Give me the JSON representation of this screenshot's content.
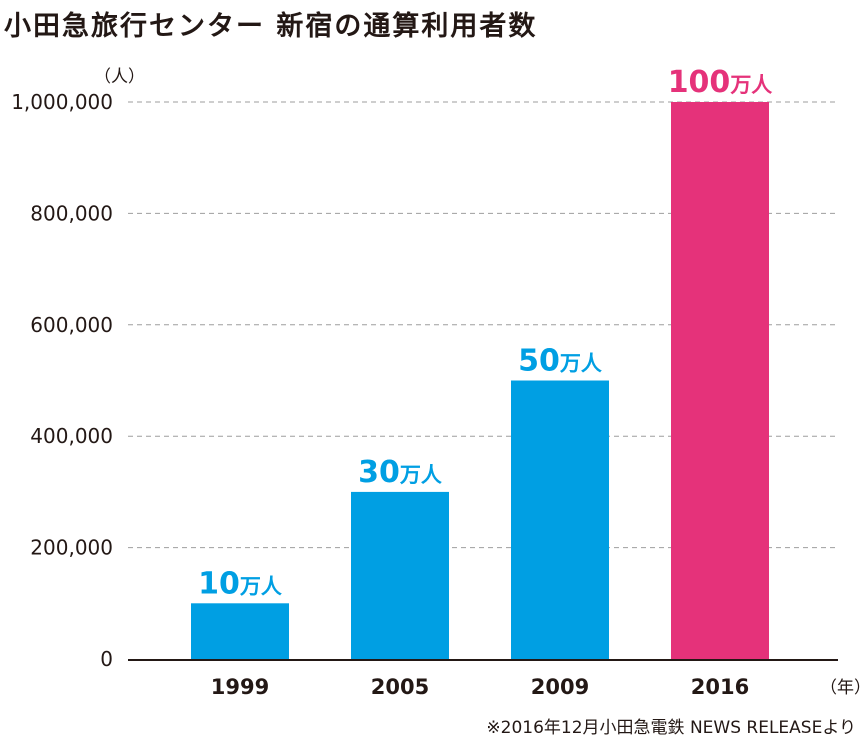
{
  "title": "小田急旅行センター 新宿の通算利用者数",
  "y_unit": "（人）",
  "x_unit": "（年）",
  "source": "※2016年12月小田急電鉄 NEWS RELEASEより",
  "colors": {
    "bar": "#009fe3",
    "highlight": "#e5327a",
    "grid": "#9e9e9e",
    "text": "#231815"
  },
  "chart_data": {
    "type": "bar",
    "categories": [
      "1999",
      "2005",
      "2009",
      "2016"
    ],
    "values": [
      100000,
      300000,
      500000,
      1000000
    ],
    "data_labels": [
      "10万人",
      "30万人",
      "50万人",
      "100万人"
    ],
    "highlight_index": 3,
    "ylim": [
      0,
      1000000
    ],
    "yticks": [
      "0",
      "200,000",
      "400,000",
      "600,000",
      "800,000",
      "1,000,000"
    ],
    "ytick_values": [
      0,
      200000,
      400000,
      600000,
      800000,
      1000000
    ],
    "grid": true,
    "legend": "none"
  }
}
